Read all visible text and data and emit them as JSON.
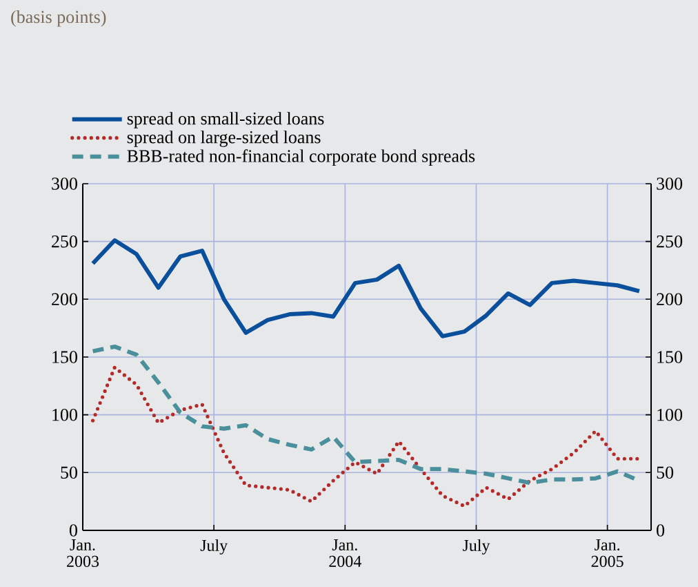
{
  "chart_data": {
    "type": "line",
    "subtitle": "(basis points)",
    "x": [
      "2003-01-15",
      "2003-02-15",
      "2003-03-15",
      "2003-04-15",
      "2003-05-15",
      "2003-06-15",
      "2003-07-15",
      "2003-08-15",
      "2003-09-15",
      "2003-10-15",
      "2003-11-15",
      "2003-12-15",
      "2004-01-15",
      "2004-02-15",
      "2004-03-15",
      "2004-04-15",
      "2004-05-15",
      "2004-06-15",
      "2004-07-15",
      "2004-08-15",
      "2004-09-15",
      "2004-10-15",
      "2004-11-15",
      "2004-12-15",
      "2005-01-15",
      "2005-02-15"
    ],
    "series": [
      {
        "name": "spread on small-sized loans",
        "color": "#0a4f9c",
        "line_style": "solid",
        "values": [
          231,
          251,
          239,
          210,
          237,
          242,
          200,
          171,
          182,
          187,
          188,
          185,
          214,
          217,
          229,
          192,
          168,
          172,
          186,
          205,
          195,
          214,
          216,
          214,
          212,
          207
        ]
      },
      {
        "name": "spread on large-sized loans",
        "color": "#b22a2a",
        "line_style": "dotted",
        "values": [
          95,
          141,
          126,
          93,
          104,
          109,
          67,
          39,
          37,
          35,
          25,
          43,
          59,
          49,
          77,
          53,
          30,
          21,
          37,
          27,
          43,
          53,
          67,
          86,
          62,
          62
        ]
      },
      {
        "name": "BBB-rated non-financial corporate bond spreads",
        "color": "#4a8f9c",
        "line_style": "dashed",
        "values": [
          155,
          159,
          152,
          128,
          102,
          90,
          88,
          91,
          79,
          74,
          70,
          81,
          59,
          60,
          61,
          53,
          53,
          51,
          49,
          45,
          41,
          44,
          44,
          45,
          51,
          43
        ]
      }
    ],
    "xlim": [
      "2003-01-01",
      "2005-03-01"
    ],
    "xticks": [
      {
        "value": "2003-01-01",
        "label": "Jan. 2003"
      },
      {
        "value": "2003-07-01",
        "label": "July"
      },
      {
        "value": "2004-01-01",
        "label": "Jan. 2004"
      },
      {
        "value": "2004-07-01",
        "label": "July"
      },
      {
        "value": "2005-01-01",
        "label": "Jan. 2005"
      }
    ],
    "ylim": [
      0,
      300
    ],
    "yticks": [
      0,
      50,
      100,
      150,
      200,
      250,
      300
    ],
    "y2lim": [
      0,
      300
    ],
    "y2ticks": [
      0,
      50,
      100,
      150,
      200,
      250,
      300
    ],
    "grid": true,
    "legend": "top",
    "marker": "none"
  }
}
